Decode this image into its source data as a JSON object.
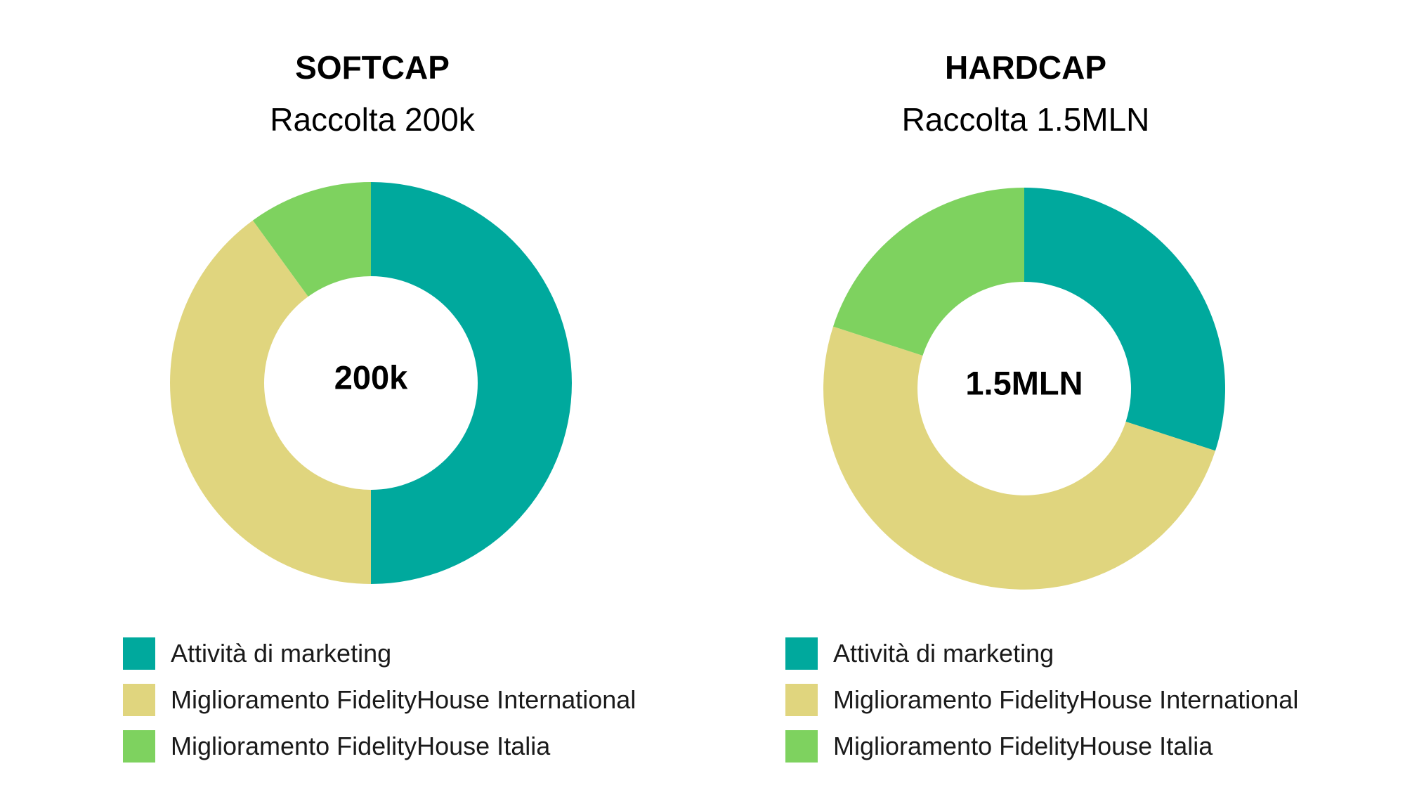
{
  "colors": {
    "marketing": "#00A99D",
    "international": "#E0D57E",
    "italia": "#7ED25F"
  },
  "legend_labels": [
    "Attività di marketing",
    "Miglioramento FidelityHouse International",
    "Miglioramento FidelityHouse Italia"
  ],
  "chart_data": [
    {
      "type": "pie",
      "title": "SOFTCAP",
      "subtitle": "Raccolta 200k",
      "center_label": "200k",
      "categories": [
        "Attività di marketing",
        "Miglioramento FidelityHouse International",
        "Miglioramento FidelityHouse Italia"
      ],
      "values": [
        50,
        40,
        10
      ],
      "legend_position": "bottom"
    },
    {
      "type": "pie",
      "title": "HARDCAP",
      "subtitle": "Raccolta 1.5MLN",
      "center_label": "1.5MLN",
      "categories": [
        "Attività di marketing",
        "Miglioramento FidelityHouse International",
        "Miglioramento FidelityHouse Italia"
      ],
      "values": [
        30,
        50,
        20
      ],
      "legend_position": "bottom"
    }
  ]
}
